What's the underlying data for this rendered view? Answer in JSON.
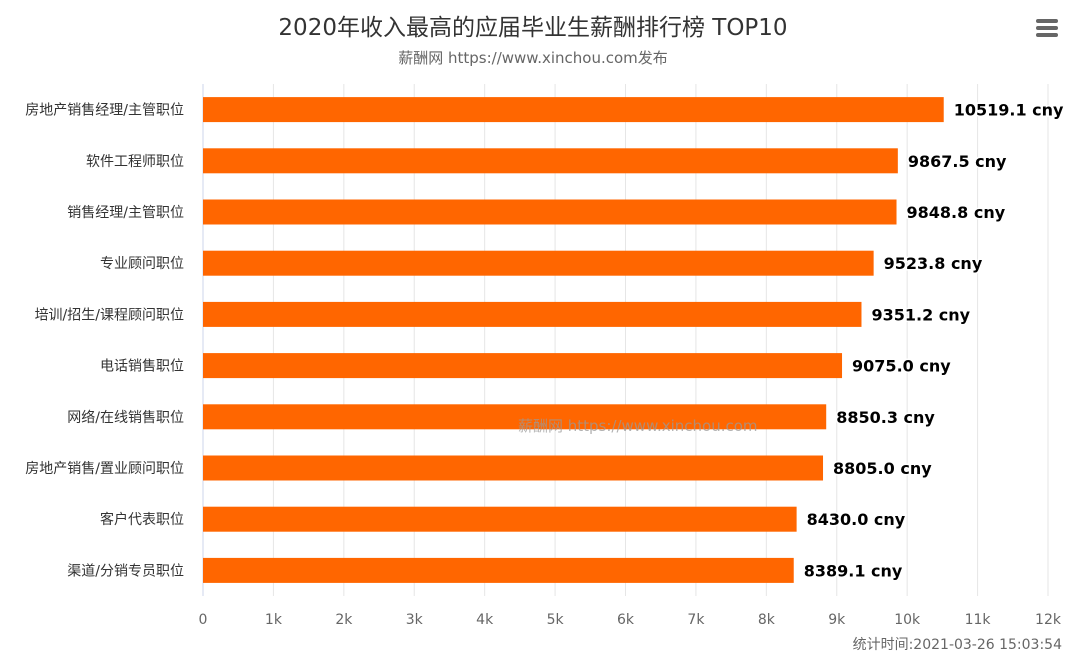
{
  "chart_data": {
    "type": "bar",
    "orientation": "horizontal",
    "title": "2020年收入最高的应届毕业生薪酬排行榜 TOP10",
    "subtitle": "薪酬网 https://www.xinchou.com发布",
    "categories": [
      "房地产销售经理/主管职位",
      "软件工程师职位",
      "销售经理/主管职位",
      "专业顾问职位",
      "培训/招生/课程顾问职位",
      "电话销售职位",
      "网络/在线销售职位",
      "房地产销售/置业顾问职位",
      "客户代表职位",
      "渠道/分销专员职位"
    ],
    "values": [
      10519.1,
      9867.5,
      9848.8,
      9523.8,
      9351.2,
      9075.0,
      8850.3,
      8805.0,
      8430.0,
      8389.1
    ],
    "data_labels": [
      "10519.1 cny",
      "9867.5 cny",
      "9848.8 cny",
      "9523.8 cny",
      "9351.2 cny",
      "9075.0 cny",
      "8850.3 cny",
      "8805.0 cny",
      "8430.0 cny",
      "8389.1 cny"
    ],
    "xlim": [
      0,
      12000
    ],
    "x_ticks": [
      0,
      1000,
      2000,
      3000,
      4000,
      5000,
      6000,
      7000,
      8000,
      9000,
      10000,
      11000,
      12000
    ],
    "x_tick_labels": [
      "0",
      "1k",
      "2k",
      "3k",
      "4k",
      "5k",
      "6k",
      "7k",
      "8k",
      "9k",
      "10k",
      "11k",
      "12k"
    ],
    "grid": true,
    "bar_color": "#ff6600",
    "xlabel": "",
    "ylabel": ""
  },
  "watermark": "薪酬网 https://www.xinchou.com",
  "credits": "统计时间:2021-03-26 15:03:54",
  "menu_icon": "hamburger-menu-icon"
}
